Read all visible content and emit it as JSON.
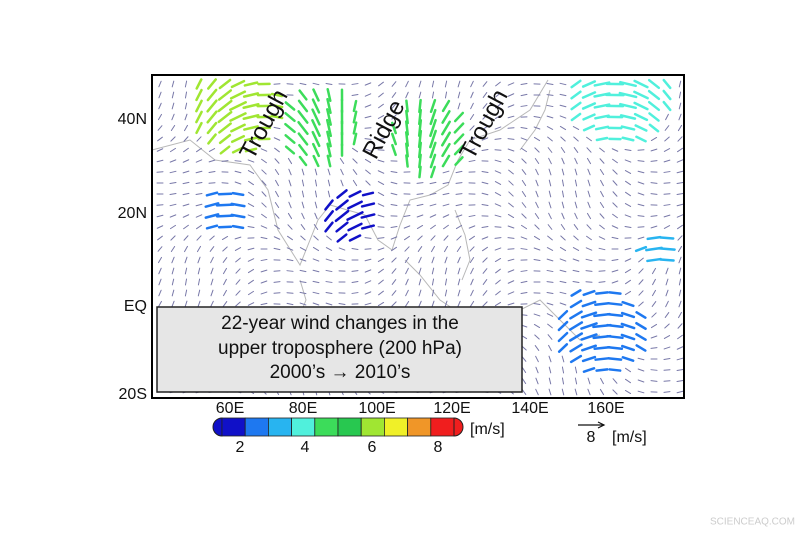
{
  "map": {
    "lat_labels": [
      "40N",
      "20N",
      "EQ",
      "20S"
    ],
    "lon_labels": [
      "60E",
      "80E",
      "100E",
      "120E",
      "140E",
      "160E"
    ],
    "annotations": [
      "Trough",
      "Ridge",
      "Trough"
    ],
    "caption": [
      "22-year wind changes in the",
      "upper troposphere (200 hPa)",
      "2000’s → 2010’s"
    ],
    "colorbar": {
      "colors": [
        "#1010c8",
        "#1e78f0",
        "#28b4f0",
        "#50f0dc",
        "#3cdc5a",
        "#28c850",
        "#a0e632",
        "#f0f028",
        "#f09628",
        "#f01e1e"
      ],
      "ticks": [
        2,
        4,
        6,
        8
      ],
      "unit": "[m/s]"
    },
    "reference_vector": {
      "value": 8,
      "unit": "[m/s]"
    },
    "watermark": "SCIENCEAQ.COM"
  }
}
